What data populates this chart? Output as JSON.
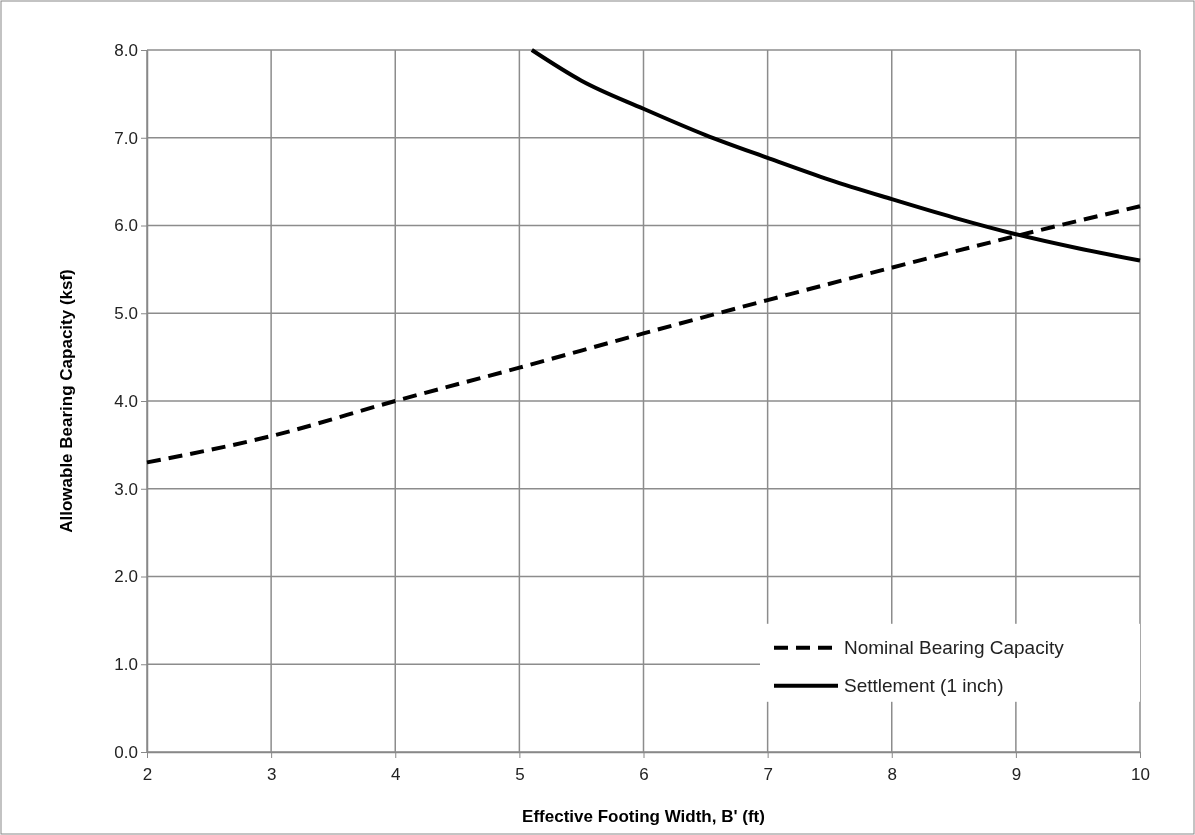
{
  "chart_data": {
    "type": "line",
    "xlabel": "Effective Footing Width, B' (ft)",
    "ylabel": "Allowable Bearing Capacity (ksf)",
    "xlim": [
      2,
      10
    ],
    "xticks": [
      2,
      3,
      4,
      5,
      6,
      7,
      8,
      9,
      10
    ],
    "ylim": [
      0,
      8
    ],
    "yticks": [
      {
        "value": 0,
        "label": "0.0"
      },
      {
        "value": 1,
        "label": "1.0"
      },
      {
        "value": 2,
        "label": "2.0"
      },
      {
        "value": 3,
        "label": "3.0"
      },
      {
        "value": 4,
        "label": "4.0"
      },
      {
        "value": 5,
        "label": "5.0"
      },
      {
        "value": 6,
        "label": "6.0"
      },
      {
        "value": 7,
        "label": "7.0"
      },
      {
        "value": 8,
        "label": "8.0"
      }
    ],
    "grid": true,
    "legend": "bottom right",
    "marker": "none",
    "series": [
      {
        "name": "Nominal Bearing Capacity",
        "color": "#000000",
        "line_style": "dashed",
        "x": [
          2,
          3,
          4,
          5,
          6,
          7,
          8,
          9,
          10
        ],
        "values": [
          3.3,
          3.6,
          4.0,
          4.38,
          4.77,
          5.15,
          5.52,
          5.88,
          6.22
        ]
      },
      {
        "name": "Settlement (1 inch)",
        "color": "#000000",
        "line_style": "solid",
        "x": [
          5.1,
          5.5,
          6,
          6.5,
          7,
          7.5,
          8,
          8.5,
          9,
          9.5,
          10
        ],
        "values": [
          8.0,
          7.65,
          7.33,
          7.03,
          6.77,
          6.52,
          6.3,
          6.09,
          5.9,
          5.74,
          5.6
        ]
      }
    ]
  }
}
